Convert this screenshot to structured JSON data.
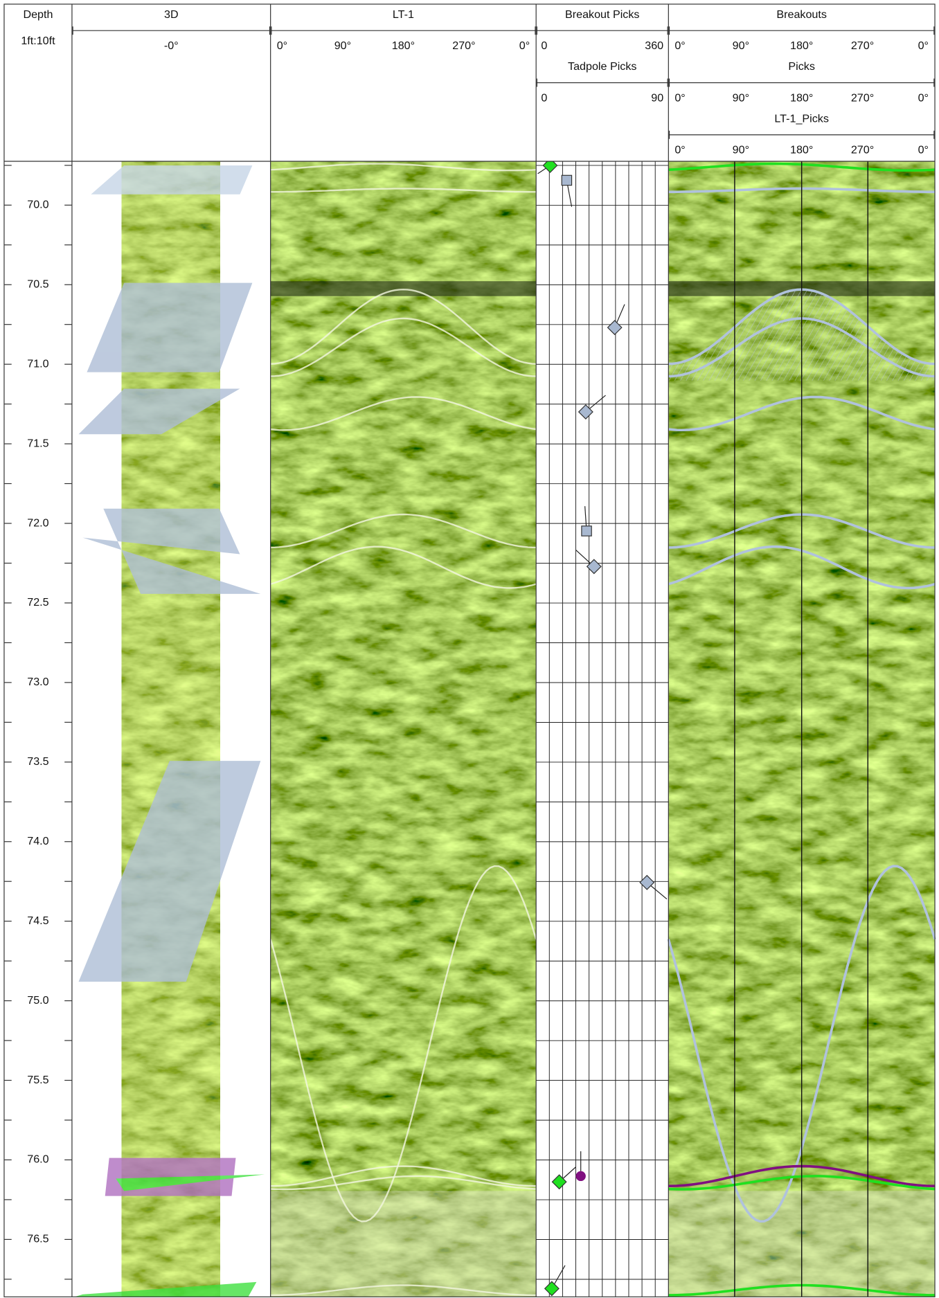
{
  "depth": {
    "title": "Depth",
    "scale": "1ft:10ft",
    "labels": [
      "70.0",
      "70.5",
      "71.0",
      "71.5",
      "72.0",
      "72.5",
      "73.0",
      "73.5",
      "74.0",
      "74.5",
      "75.0",
      "75.5",
      "76.0",
      "76.5"
    ]
  },
  "tracks": [
    {
      "title": "3D",
      "scales": [
        {
          "ticks": [
            "-0°"
          ]
        }
      ]
    },
    {
      "title": "LT-1",
      "scales": [
        {
          "ticks": [
            "0°",
            "90°",
            "180°",
            "270°",
            "0°"
          ]
        }
      ]
    },
    {
      "title": "Breakout Picks",
      "scales": [
        {
          "ticks": [
            "0",
            "360"
          ]
        },
        {
          "title": "Tadpole Picks",
          "ticks": [
            "0",
            "90"
          ]
        }
      ]
    },
    {
      "title": "Breakouts",
      "scales": [
        {
          "ticks": [
            "0°",
            "90°",
            "180°",
            "270°",
            "0°"
          ]
        },
        {
          "title": "Picks",
          "ticks": [
            "0°",
            "90°",
            "180°",
            "270°",
            "0°"
          ]
        },
        {
          "title": "LT-1_Picks",
          "ticks": [
            "0°",
            "90°",
            "180°",
            "270°",
            "0°"
          ]
        }
      ]
    }
  ]
}
